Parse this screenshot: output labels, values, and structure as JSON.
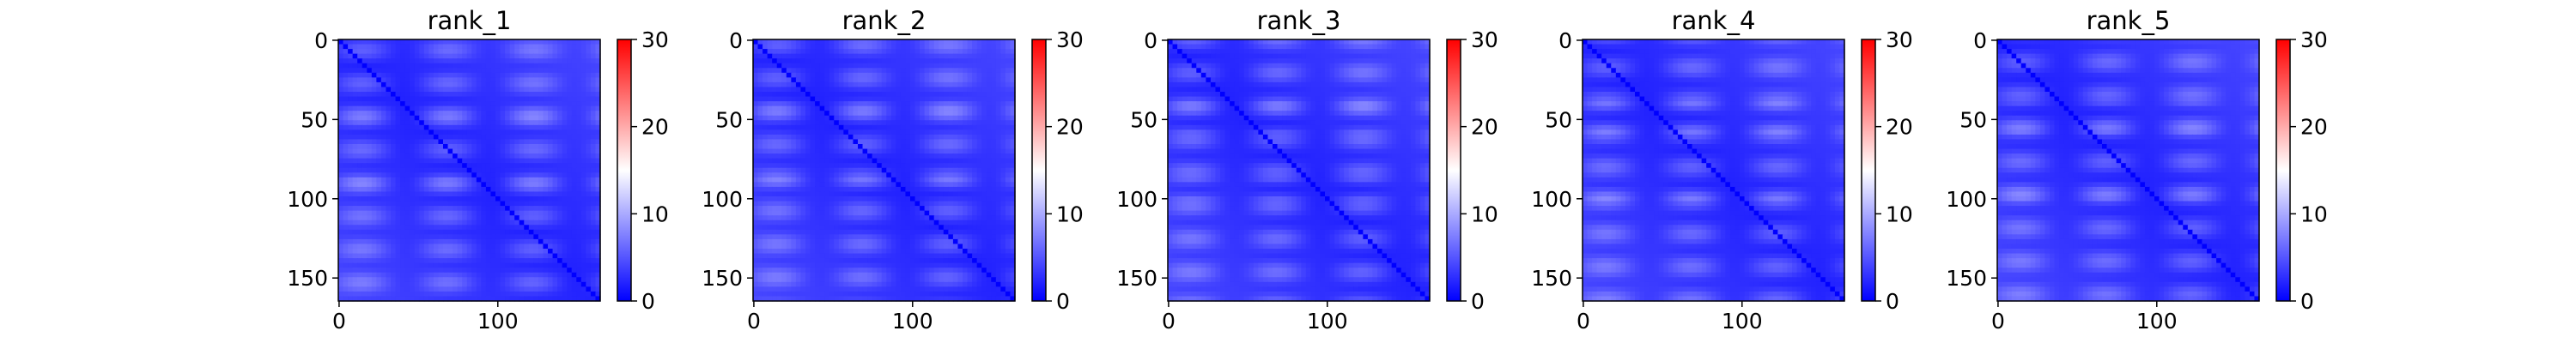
{
  "chart_data": [
    {
      "type": "heatmap",
      "title": "rank_1",
      "matrix_size": 165,
      "x_ticks": [
        0,
        100
      ],
      "y_ticks": [
        0,
        50,
        100,
        150
      ],
      "colorbar": {
        "min": 0,
        "max": 30,
        "ticks": [
          0,
          10,
          20,
          30
        ],
        "colormap": "bwr"
      },
      "value_range_observed": [
        0,
        8
      ]
    },
    {
      "type": "heatmap",
      "title": "rank_2",
      "matrix_size": 165,
      "x_ticks": [
        0,
        100
      ],
      "y_ticks": [
        0,
        50,
        100,
        150
      ],
      "colorbar": {
        "min": 0,
        "max": 30,
        "ticks": [
          0,
          10,
          20,
          30
        ],
        "colormap": "bwr"
      },
      "value_range_observed": [
        0,
        8
      ]
    },
    {
      "type": "heatmap",
      "title": "rank_3",
      "matrix_size": 165,
      "x_ticks": [
        0,
        100
      ],
      "y_ticks": [
        0,
        50,
        100,
        150
      ],
      "colorbar": {
        "min": 0,
        "max": 30,
        "ticks": [
          0,
          10,
          20,
          30
        ],
        "colormap": "bwr"
      },
      "value_range_observed": [
        0,
        8
      ]
    },
    {
      "type": "heatmap",
      "title": "rank_4",
      "matrix_size": 165,
      "x_ticks": [
        0,
        100
      ],
      "y_ticks": [
        0,
        50,
        100,
        150
      ],
      "colorbar": {
        "min": 0,
        "max": 30,
        "ticks": [
          0,
          10,
          20,
          30
        ],
        "colormap": "bwr"
      },
      "value_range_observed": [
        0,
        9
      ]
    },
    {
      "type": "heatmap",
      "title": "rank_5",
      "matrix_size": 165,
      "x_ticks": [
        0,
        100
      ],
      "y_ticks": [
        0,
        50,
        100,
        150
      ],
      "colorbar": {
        "min": 0,
        "max": 30,
        "ticks": [
          0,
          10,
          20,
          30
        ],
        "colormap": "bwr"
      },
      "value_range_observed": [
        0,
        8
      ]
    }
  ],
  "colors": {
    "low": "#0000ff",
    "mid": "#ffffff",
    "high": "#ff0000",
    "axis": "#000000"
  }
}
